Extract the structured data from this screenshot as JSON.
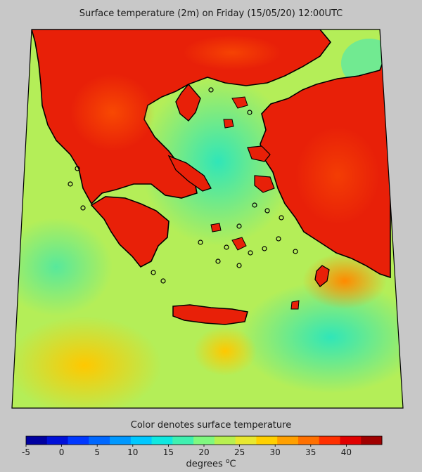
{
  "title": "Surface temperature (2m) on Friday (15/05/20) 12:00UTC",
  "colorbar": {
    "title": "Color denotes surface temperature",
    "unit_prefix": "degrees ",
    "unit_sup": "o",
    "unit_suffix": "C",
    "tick_labels": [
      "-5",
      "0",
      "5",
      "10",
      "15",
      "20",
      "25",
      "30",
      "35",
      "40"
    ],
    "colors": [
      "#0000a0",
      "#0010d8",
      "#0038ff",
      "#0068ff",
      "#0098ff",
      "#00c8ff",
      "#10e8e0",
      "#40f0b0",
      "#80f880",
      "#b8f050",
      "#e8e830",
      "#ffd000",
      "#ffa000",
      "#ff7000",
      "#ff3000",
      "#e00000",
      "#a00000"
    ]
  },
  "map": {
    "colors": {
      "sea_light": "#a8ec60",
      "sea_cool": "#60e8a0",
      "sea_warm": "#f0e040",
      "land_hot": "#e82008",
      "land_warm": "#ff6a00",
      "frame": "#000000"
    }
  }
}
